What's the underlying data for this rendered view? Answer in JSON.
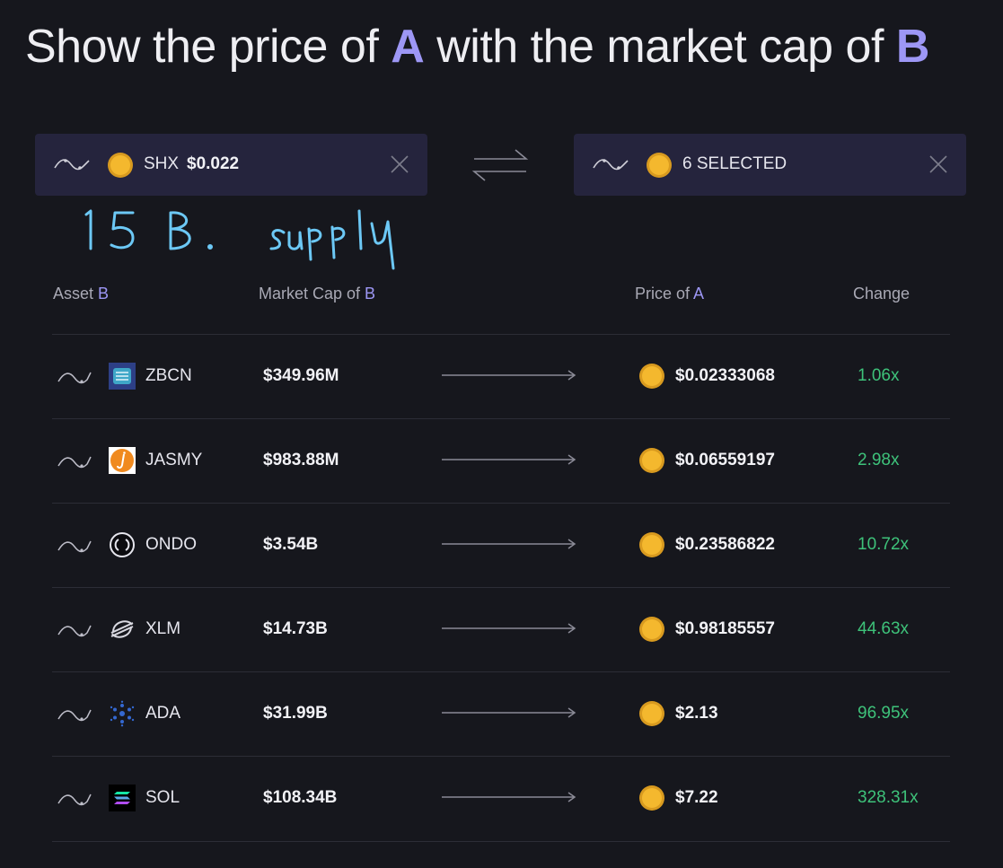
{
  "headline": {
    "part1": "Show the price of ",
    "a": "A",
    "part2": " with the market cap of ",
    "b": "B"
  },
  "selector_a": {
    "symbol": "SHX",
    "price": "$0.022",
    "icon": "sparkline-icon"
  },
  "selector_b": {
    "label": "6 SELECTED",
    "icon": "sparkline-icon"
  },
  "handwritten_note": "15 B. supply",
  "columns": {
    "asset": "Asset ",
    "asset_accent": "B",
    "mcap": "Market Cap of ",
    "mcap_accent": "B",
    "price": "Price of ",
    "price_accent": "A",
    "change": "Change"
  },
  "rows": [
    {
      "ticker": "ZBCN",
      "market_cap": "$349.96M",
      "price": "$0.02333068",
      "change": "1.06x",
      "logo": "zbcn-logo"
    },
    {
      "ticker": "JASMY",
      "market_cap": "$983.88M",
      "price": "$0.06559197",
      "change": "2.98x",
      "logo": "jasmy-logo"
    },
    {
      "ticker": "ONDO",
      "market_cap": "$3.54B",
      "price": "$0.23586822",
      "change": "10.72x",
      "logo": "ondo-logo"
    },
    {
      "ticker": "XLM",
      "market_cap": "$14.73B",
      "price": "$0.98185557",
      "change": "44.63x",
      "logo": "xlm-logo"
    },
    {
      "ticker": "ADA",
      "market_cap": "$31.99B",
      "price": "$2.13",
      "change": "96.95x",
      "logo": "ada-logo"
    },
    {
      "ticker": "SOL",
      "market_cap": "$108.34B",
      "price": "$7.22",
      "change": "328.31x",
      "logo": "sol-logo"
    }
  ],
  "colors": {
    "accent": "#9d97f5",
    "positive": "#3ec27a",
    "coin": "#f4b82e",
    "background": "#16171d",
    "panel": "#25243d"
  }
}
